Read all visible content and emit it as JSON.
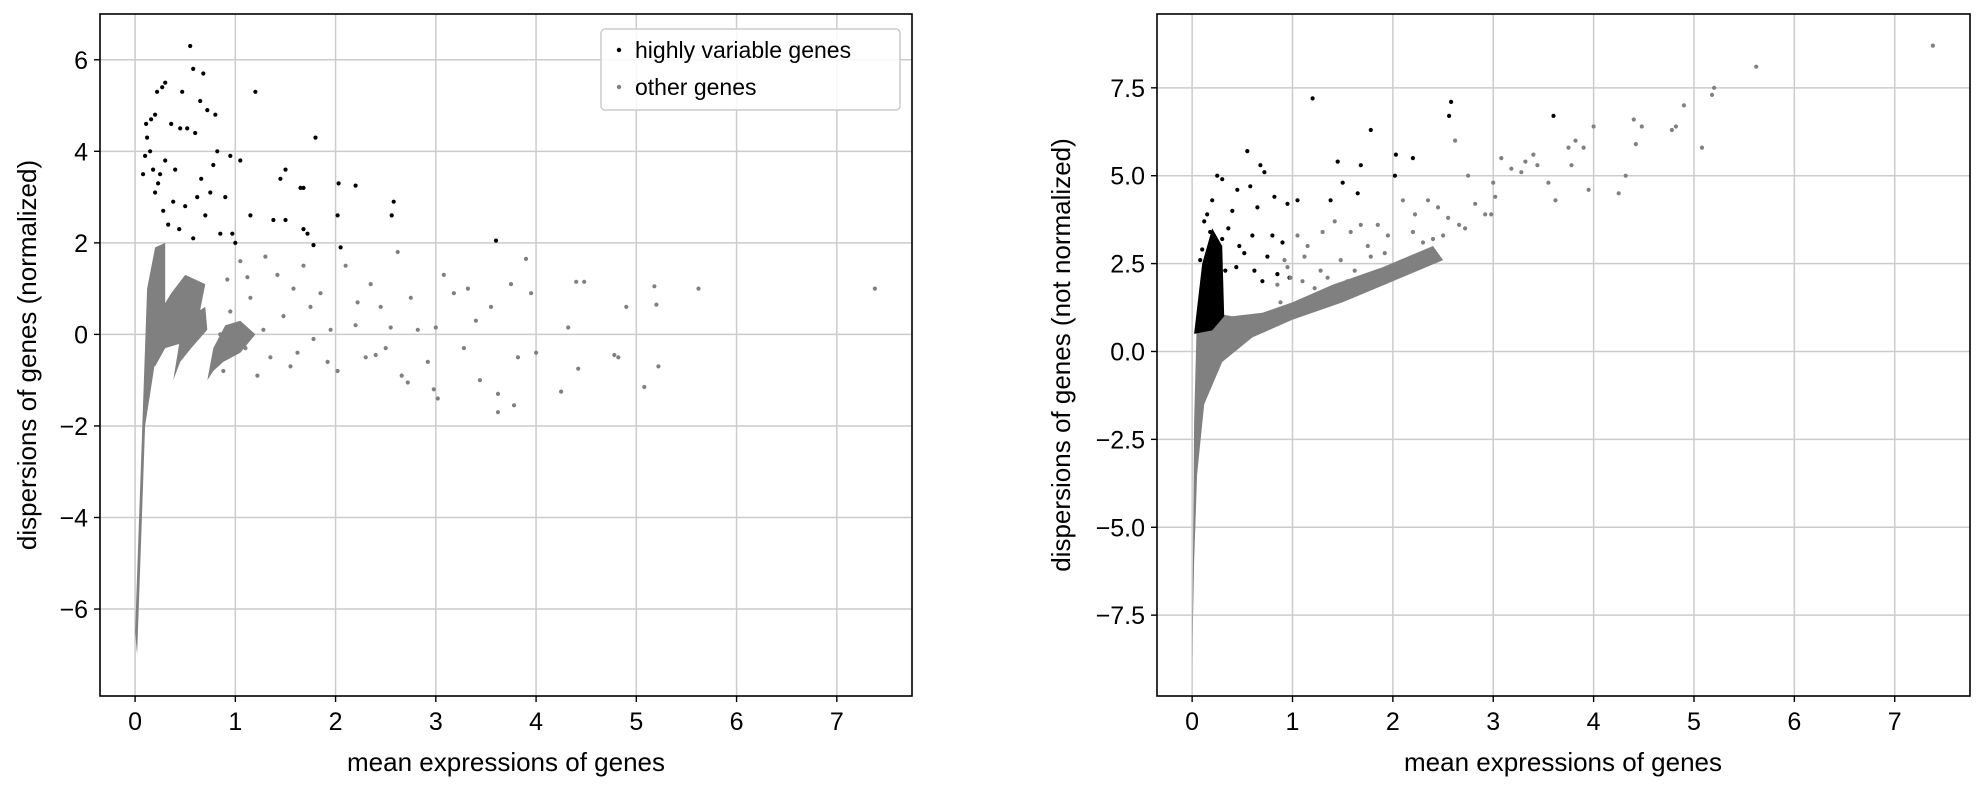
{
  "colors": {
    "highly_variable": "#000000",
    "other": "#808080",
    "grid": "#cccccc",
    "frame": "#000000",
    "legend_border": "#cccccc"
  },
  "chart_data": [
    {
      "type": "scatter",
      "xlabel": "mean expressions of genes",
      "ylabel": "dispersions of genes (normalized)",
      "xlim": [
        -0.35,
        7.75
      ],
      "ylim": [
        -7.9,
        7.0
      ],
      "xticks": [
        0,
        1,
        2,
        3,
        4,
        5,
        6,
        7
      ],
      "yticks": [
        -6,
        -4,
        -2,
        0,
        2,
        4,
        6
      ],
      "ytick_labels": [
        "−6",
        "−4",
        "−2",
        "0",
        "2",
        "4",
        "6"
      ],
      "grid": true,
      "legend": {
        "placement": "top-right",
        "entries": [
          "highly variable genes",
          "other genes"
        ]
      },
      "series": [
        {
          "name": "highly variable genes",
          "color": "#000000",
          "points": [
            [
              0.55,
              6.3
            ],
            [
              0.58,
              5.8
            ],
            [
              0.68,
              5.7
            ],
            [
              0.3,
              5.5
            ],
            [
              0.27,
              5.4
            ],
            [
              0.22,
              5.3
            ],
            [
              1.2,
              5.3
            ],
            [
              0.47,
              5.3
            ],
            [
              0.65,
              5.1
            ],
            [
              0.2,
              4.8
            ],
            [
              0.16,
              4.7
            ],
            [
              0.11,
              4.6
            ],
            [
              0.72,
              4.9
            ],
            [
              0.8,
              4.8
            ],
            [
              0.36,
              4.6
            ],
            [
              0.45,
              4.5
            ],
            [
              0.52,
              4.5
            ],
            [
              0.6,
              4.4
            ],
            [
              0.82,
              4.0
            ],
            [
              0.95,
              3.9
            ],
            [
              1.05,
              3.8
            ],
            [
              1.5,
              3.6
            ],
            [
              1.8,
              4.3
            ],
            [
              1.45,
              3.4
            ],
            [
              2.03,
              3.3
            ],
            [
              2.2,
              3.25
            ],
            [
              2.58,
              2.9
            ],
            [
              1.65,
              3.2
            ],
            [
              1.68,
              3.2
            ],
            [
              0.9,
              3.0
            ],
            [
              0.75,
              3.1
            ],
            [
              0.62,
              3.0
            ],
            [
              0.4,
              3.6
            ],
            [
              0.3,
              3.8
            ],
            [
              0.25,
              3.5
            ],
            [
              1.15,
              2.6
            ],
            [
              1.38,
              2.5
            ],
            [
              1.5,
              2.5
            ],
            [
              1.68,
              2.3
            ],
            [
              1.72,
              2.2
            ],
            [
              2.02,
              2.6
            ],
            [
              2.56,
              2.6
            ],
            [
              0.85,
              2.2
            ],
            [
              0.97,
              2.2
            ],
            [
              0.7,
              2.6
            ],
            [
              0.5,
              2.8
            ],
            [
              0.38,
              2.9
            ],
            [
              0.33,
              2.4
            ],
            [
              0.2,
              3.1
            ],
            [
              0.15,
              4.0
            ],
            [
              0.1,
              3.9
            ],
            [
              1.78,
              1.95
            ],
            [
              1.0,
              2.0
            ],
            [
              0.58,
              2.1
            ],
            [
              0.44,
              2.3
            ],
            [
              0.28,
              2.7
            ],
            [
              0.23,
              3.3
            ],
            [
              0.18,
              3.6
            ],
            [
              0.12,
              4.3
            ],
            [
              0.08,
              3.5
            ],
            [
              3.6,
              2.05
            ],
            [
              2.05,
              1.9
            ],
            [
              0.66,
              3.4
            ],
            [
              0.78,
              3.7
            ]
          ]
        },
        {
          "name": "other genes",
          "color": "#808080",
          "points": [
            [
              7.38,
              1.0
            ],
            [
              5.62,
              1.0
            ],
            [
              5.18,
              1.05
            ],
            [
              5.2,
              0.65
            ],
            [
              4.9,
              0.6
            ],
            [
              4.4,
              1.15
            ],
            [
              4.48,
              1.15
            ],
            [
              3.9,
              1.65
            ],
            [
              4.32,
              0.15
            ],
            [
              4.0,
              -0.4
            ],
            [
              4.82,
              -0.5
            ],
            [
              4.78,
              -0.45
            ],
            [
              4.42,
              -0.75
            ],
            [
              5.08,
              -1.15
            ],
            [
              5.22,
              -0.7
            ],
            [
              4.25,
              -1.25
            ],
            [
              3.62,
              -1.7
            ],
            [
              3.78,
              -1.55
            ],
            [
              3.82,
              -0.5
            ],
            [
              3.75,
              1.1
            ],
            [
              3.55,
              0.6
            ],
            [
              3.4,
              0.3
            ],
            [
              3.18,
              0.9
            ],
            [
              3.08,
              1.3
            ],
            [
              3.28,
              -0.3
            ],
            [
              3.44,
              -1.0
            ],
            [
              3.62,
              -1.3
            ],
            [
              2.98,
              -1.2
            ],
            [
              3.02,
              -1.4
            ],
            [
              3.0,
              0.15
            ],
            [
              2.75,
              0.8
            ],
            [
              2.62,
              1.8
            ],
            [
              2.92,
              -0.6
            ],
            [
              2.66,
              -0.9
            ],
            [
              2.35,
              1.1
            ],
            [
              2.45,
              0.6
            ],
            [
              2.5,
              -0.3
            ],
            [
              2.3,
              -0.5
            ],
            [
              2.22,
              0.7
            ],
            [
              2.1,
              1.5
            ],
            [
              2.2,
              0.2
            ],
            [
              2.02,
              -0.8
            ],
            [
              1.92,
              -0.6
            ],
            [
              1.85,
              0.9
            ],
            [
              1.78,
              -0.1
            ],
            [
              1.68,
              1.5
            ],
            [
              1.62,
              -0.4
            ],
            [
              1.55,
              -0.7
            ],
            [
              1.48,
              0.4
            ],
            [
              1.42,
              1.3
            ],
            [
              1.35,
              -0.5
            ],
            [
              1.28,
              0.1
            ],
            [
              1.22,
              -0.9
            ],
            [
              1.15,
              0.8
            ],
            [
              1.1,
              -0.3
            ],
            [
              1.05,
              1.6
            ],
            [
              0.98,
              -0.2
            ],
            [
              0.95,
              0.5
            ],
            [
              0.92,
              1.2
            ],
            [
              0.88,
              -0.8
            ],
            [
              0.85,
              0.0
            ],
            [
              3.32,
              1.0
            ],
            [
              3.95,
              0.9
            ],
            [
              2.82,
              0.1
            ],
            [
              2.72,
              -1.05
            ],
            [
              2.55,
              0.15
            ],
            [
              1.95,
              0.1
            ],
            [
              1.75,
              0.6
            ],
            [
              1.58,
              1.0
            ],
            [
              1.3,
              1.7
            ],
            [
              1.12,
              1.25
            ],
            [
              2.4,
              -0.45
            ]
          ]
        }
      ]
    },
    {
      "type": "scatter",
      "xlabel": "mean expressions of genes",
      "ylabel": "dispersions of genes (not normalized)",
      "xlim": [
        -0.35,
        7.75
      ],
      "ylim": [
        -9.8,
        9.6
      ],
      "xticks": [
        0,
        1,
        2,
        3,
        4,
        5,
        6,
        7
      ],
      "yticks": [
        -7.5,
        -5.0,
        -2.5,
        0.0,
        2.5,
        5.0,
        7.5
      ],
      "ytick_labels": [
        "−7.5",
        "−5.0",
        "−2.5",
        "0.0",
        "2.5",
        "5.0",
        "7.5"
      ],
      "grid": true,
      "series": [
        {
          "name": "highly variable genes",
          "color": "#000000",
          "points": [
            [
              1.2,
              7.2
            ],
            [
              2.58,
              7.1
            ],
            [
              2.56,
              6.7
            ],
            [
              3.6,
              6.7
            ],
            [
              1.78,
              6.3
            ],
            [
              0.55,
              5.7
            ],
            [
              0.68,
              5.3
            ],
            [
              0.72,
              5.1
            ],
            [
              1.45,
              5.4
            ],
            [
              1.68,
              5.3
            ],
            [
              2.03,
              5.6
            ],
            [
              2.2,
              5.5
            ],
            [
              0.25,
              5.0
            ],
            [
              0.3,
              4.9
            ],
            [
              0.45,
              4.6
            ],
            [
              0.58,
              4.7
            ],
            [
              1.05,
              4.3
            ],
            [
              0.82,
              4.4
            ],
            [
              0.95,
              4.2
            ],
            [
              1.38,
              4.3
            ],
            [
              1.5,
              4.8
            ],
            [
              1.65,
              4.5
            ],
            [
              2.02,
              5.0
            ],
            [
              0.65,
              4.1
            ],
            [
              0.4,
              4.0
            ],
            [
              0.2,
              4.3
            ],
            [
              0.15,
              3.9
            ],
            [
              0.12,
              3.7
            ],
            [
              0.8,
              3.3
            ],
            [
              0.9,
              3.1
            ],
            [
              0.36,
              3.5
            ],
            [
              0.47,
              3.0
            ],
            [
              0.6,
              3.3
            ],
            [
              0.52,
              2.8
            ],
            [
              0.75,
              2.7
            ],
            [
              0.3,
              3.2
            ],
            [
              0.22,
              3.0
            ],
            [
              0.27,
              2.6
            ],
            [
              0.18,
              3.4
            ],
            [
              0.85,
              2.2
            ],
            [
              0.97,
              2.1
            ],
            [
              0.62,
              2.3
            ],
            [
              0.7,
              2.0
            ],
            [
              0.44,
              2.4
            ],
            [
              0.33,
              2.3
            ],
            [
              0.23,
              2.8
            ],
            [
              0.1,
              2.9
            ],
            [
              0.08,
              2.6
            ]
          ]
        },
        {
          "name": "other genes",
          "color": "#808080",
          "points": [
            [
              7.38,
              8.7
            ],
            [
              5.62,
              8.1
            ],
            [
              5.2,
              7.5
            ],
            [
              5.18,
              7.3
            ],
            [
              5.08,
              5.8
            ],
            [
              4.9,
              7.0
            ],
            [
              4.82,
              6.4
            ],
            [
              4.78,
              6.3
            ],
            [
              4.48,
              6.4
            ],
            [
              4.4,
              6.6
            ],
            [
              4.42,
              5.9
            ],
            [
              4.32,
              5.0
            ],
            [
              4.25,
              4.5
            ],
            [
              4.0,
              6.4
            ],
            [
              3.9,
              5.8
            ],
            [
              3.95,
              4.6
            ],
            [
              3.82,
              6.0
            ],
            [
              3.78,
              5.3
            ],
            [
              3.75,
              5.8
            ],
            [
              3.62,
              4.3
            ],
            [
              3.55,
              4.8
            ],
            [
              3.44,
              5.3
            ],
            [
              3.4,
              5.6
            ],
            [
              3.32,
              5.4
            ],
            [
              3.28,
              5.1
            ],
            [
              3.18,
              5.2
            ],
            [
              3.08,
              5.5
            ],
            [
              3.02,
              4.4
            ],
            [
              3.0,
              4.8
            ],
            [
              2.98,
              3.9
            ],
            [
              2.92,
              3.9
            ],
            [
              2.82,
              4.2
            ],
            [
              2.75,
              5.0
            ],
            [
              2.72,
              3.5
            ],
            [
              2.66,
              3.6
            ],
            [
              2.62,
              6.0
            ],
            [
              2.55,
              3.8
            ],
            [
              2.5,
              3.3
            ],
            [
              2.45,
              4.1
            ],
            [
              2.4,
              3.2
            ],
            [
              2.35,
              4.3
            ],
            [
              2.3,
              3.1
            ],
            [
              2.22,
              3.9
            ],
            [
              2.2,
              3.4
            ],
            [
              2.1,
              4.3
            ],
            [
              2.02,
              2.4
            ],
            [
              1.95,
              3.3
            ],
            [
              1.92,
              2.8
            ],
            [
              1.85,
              3.6
            ],
            [
              1.78,
              2.7
            ],
            [
              1.75,
              3.0
            ],
            [
              1.68,
              3.6
            ],
            [
              1.62,
              2.3
            ],
            [
              1.58,
              3.4
            ],
            [
              1.55,
              2.0
            ],
            [
              1.48,
              2.6
            ],
            [
              1.42,
              3.7
            ],
            [
              1.35,
              2.1
            ],
            [
              1.3,
              3.4
            ],
            [
              1.28,
              2.3
            ],
            [
              1.22,
              1.8
            ],
            [
              1.15,
              3.0
            ],
            [
              1.12,
              2.7
            ],
            [
              1.1,
              2.0
            ],
            [
              1.05,
              3.3
            ],
            [
              0.98,
              2.1
            ],
            [
              0.95,
              2.4
            ],
            [
              0.92,
              2.6
            ],
            [
              0.88,
              1.4
            ],
            [
              0.85,
              1.9
            ]
          ]
        }
      ]
    }
  ]
}
